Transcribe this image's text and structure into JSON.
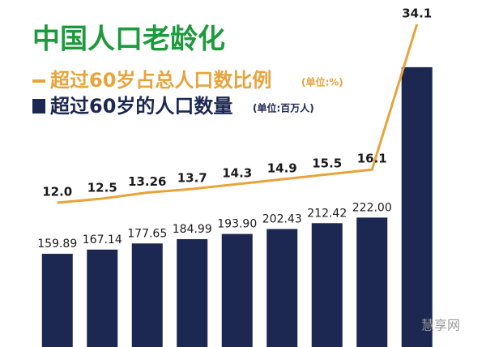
{
  "chart_data": {
    "type": "bar_line",
    "title": "中国人口老龄化",
    "categories": [
      null,
      null,
      null,
      null,
      null,
      null,
      null,
      null,
      null
    ],
    "series": [
      {
        "name": "超过60岁占总人口数比例",
        "unit": "(单位:%)",
        "kind": "line",
        "color": "#e8a33a",
        "values": [
          12.0,
          12.5,
          13.26,
          13.7,
          14.3,
          14.9,
          15.5,
          16.1,
          34.1
        ],
        "value_labels": [
          "12.0",
          "12.5",
          "13.26",
          "13.7",
          "14.3",
          "14.9",
          "15.5",
          "16.1",
          "34.1"
        ]
      },
      {
        "name": "超过60岁的人口数量",
        "unit": "(单位:百万人)",
        "kind": "bar",
        "color": "#1c2752",
        "values": [
          159.89,
          167.14,
          177.65,
          184.99,
          193.9,
          202.43,
          212.42,
          222.0,
          480
        ],
        "value_labels": [
          "159.89",
          "167.14",
          "177.65",
          "184.99",
          "193.90",
          "202.43",
          "212.42",
          "222.00",
          null
        ]
      }
    ],
    "watermark": "慧享网"
  }
}
